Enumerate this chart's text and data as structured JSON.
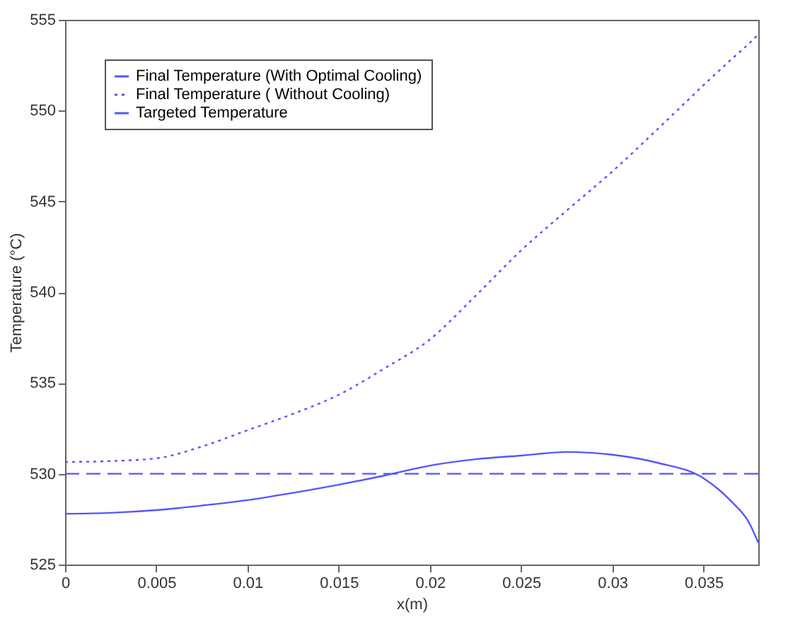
{
  "chart_data": {
    "type": "line",
    "xlabel": "x(m)",
    "ylabel": "Temperature (°C)",
    "x": [
      0,
      0.0025,
      0.005,
      0.0075,
      0.01,
      0.0125,
      0.015,
      0.0175,
      0.02,
      0.0225,
      0.025,
      0.0275,
      0.03,
      0.0325,
      0.035,
      0.0365,
      0.0375,
      0.038
    ],
    "series": [
      {
        "name": "Final Temperature (With Optimal Cooling)",
        "color": "#5555ff",
        "line_style": "solid",
        "values": [
          527.8,
          527.85,
          528.0,
          528.25,
          528.55,
          528.95,
          529.4,
          529.9,
          530.45,
          530.8,
          531.0,
          531.2,
          531.05,
          530.6,
          529.75,
          528.5,
          527.3,
          526.2
        ]
      },
      {
        "name": "Final Temperature ( Without Cooling)",
        "color": "#5555ff",
        "line_style": "dotted",
        "values": [
          530.65,
          530.7,
          530.85,
          531.5,
          532.4,
          533.3,
          534.35,
          535.8,
          537.4,
          539.8,
          542.3,
          544.5,
          546.65,
          549.0,
          551.4,
          552.8,
          553.7,
          554.2
        ]
      },
      {
        "name": "Targeted Temperature",
        "color": "#5555ff",
        "line_style": "dashed",
        "values": [
          530,
          530,
          530,
          530,
          530,
          530,
          530,
          530,
          530,
          530,
          530,
          530,
          530,
          530,
          530,
          530,
          530,
          530
        ]
      }
    ],
    "xlim": [
      0,
      0.038
    ],
    "xticks": [
      0,
      0.005,
      0.01,
      0.015,
      0.02,
      0.025,
      0.03,
      0.035
    ],
    "ylim": [
      525,
      555
    ],
    "yticks": [
      525,
      530,
      535,
      540,
      545,
      550,
      555
    ],
    "grid": false,
    "legend": "top left"
  }
}
